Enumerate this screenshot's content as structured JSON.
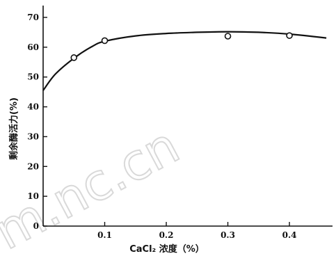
{
  "watermark": "m.nc.cn",
  "chart_data": {
    "type": "line",
    "xlabel": "CaCl₂ 浓度（%）",
    "ylabel": "剩余酶活力(%)",
    "xlim": [
      0,
      0.47
    ],
    "ylim": [
      0,
      70
    ],
    "x_ticks": [
      {
        "value": 0.1,
        "label": "0.1"
      },
      {
        "value": 0.2,
        "label": "0.2"
      },
      {
        "value": 0.3,
        "label": "0.3"
      },
      {
        "value": 0.4,
        "label": "0.4"
      }
    ],
    "y_ticks": [
      {
        "value": 0,
        "label": "0"
      },
      {
        "value": 10,
        "label": "10"
      },
      {
        "value": 20,
        "label": "20"
      },
      {
        "value": 30,
        "label": "30"
      },
      {
        "value": 40,
        "label": "40"
      },
      {
        "value": 50,
        "label": "50"
      },
      {
        "value": 60,
        "label": "60"
      },
      {
        "value": 70,
        "label": "70"
      }
    ],
    "series": [
      {
        "points": [
          {
            "x": 0.05,
            "y": 56.5
          },
          {
            "x": 0.1,
            "y": 62.2
          },
          {
            "x": 0.3,
            "y": 63.7
          },
          {
            "x": 0.4,
            "y": 63.9
          }
        ],
        "curve": [
          {
            "x": 0.0,
            "y": 45.5
          },
          {
            "x": 0.02,
            "y": 51.0
          },
          {
            "x": 0.05,
            "y": 56.3
          },
          {
            "x": 0.08,
            "y": 60.3
          },
          {
            "x": 0.1,
            "y": 62.0
          },
          {
            "x": 0.15,
            "y": 63.8
          },
          {
            "x": 0.2,
            "y": 64.6
          },
          {
            "x": 0.25,
            "y": 65.0
          },
          {
            "x": 0.3,
            "y": 65.2
          },
          {
            "x": 0.35,
            "y": 65.0
          },
          {
            "x": 0.4,
            "y": 64.4
          },
          {
            "x": 0.46,
            "y": 63.1
          }
        ]
      }
    ],
    "grid": false,
    "legend": "none"
  }
}
